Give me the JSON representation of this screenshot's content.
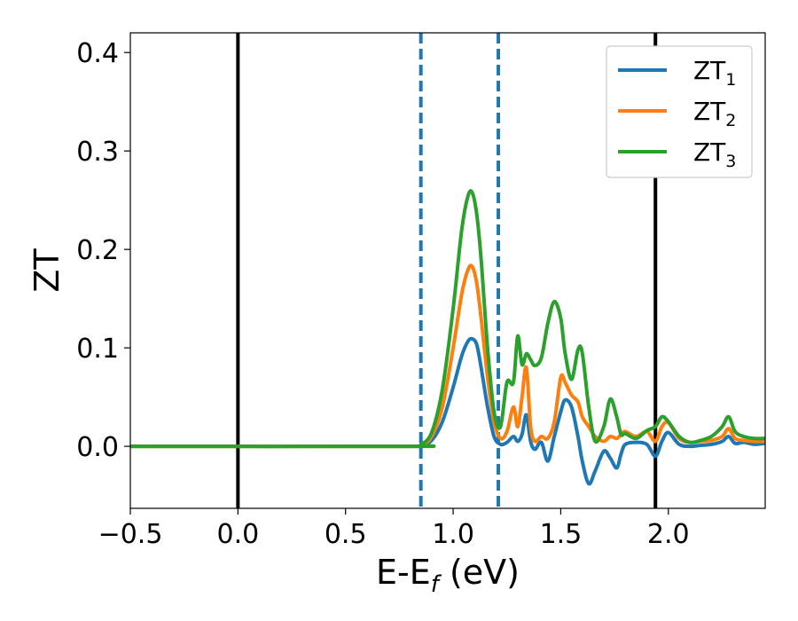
{
  "chart_data": {
    "type": "line",
    "title": "",
    "xlabel": {
      "main": "E-E",
      "sub": "f",
      "unit": " (eV)"
    },
    "ylabel": "ZT",
    "xlim": [
      -0.5,
      2.45
    ],
    "ylim": [
      -0.063,
      0.42
    ],
    "xticks": [
      -0.5,
      0.0,
      0.5,
      1.0,
      1.5,
      2.0
    ],
    "xtick_labels": [
      "−0.5",
      "0.0",
      "0.5",
      "1.0",
      "1.5",
      "2.0"
    ],
    "yticks": [
      0.0,
      0.1,
      0.2,
      0.3,
      0.4
    ],
    "ytick_labels": [
      "0.0",
      "0.1",
      "0.2",
      "0.3",
      "0.4"
    ],
    "grid": false,
    "legend_position": "top-right",
    "vlines_solid": [
      0.0,
      1.94
    ],
    "vlines_dashed": [
      0.85,
      1.21
    ],
    "series": [
      {
        "name": "ZT",
        "name_sub": "1",
        "color": "#1f77b4",
        "x": [
          -0.5,
          0.8,
          0.85,
          0.9,
          0.95,
          1.0,
          1.04,
          1.07,
          1.09,
          1.11,
          1.13,
          1.16,
          1.19,
          1.22,
          1.25,
          1.28,
          1.3,
          1.32,
          1.34,
          1.36,
          1.38,
          1.41,
          1.44,
          1.47,
          1.5,
          1.52,
          1.55,
          1.58,
          1.6,
          1.63,
          1.66,
          1.7,
          1.73,
          1.76,
          1.78,
          1.8,
          1.85,
          1.9,
          1.94,
          1.97,
          2.0,
          2.05,
          2.1,
          2.15,
          2.2,
          2.25,
          2.28,
          2.31,
          2.35,
          2.4,
          2.45
        ],
        "y": [
          0.0,
          0.0,
          0.001,
          0.006,
          0.025,
          0.06,
          0.092,
          0.107,
          0.109,
          0.103,
          0.08,
          0.04,
          0.01,
          0.002,
          0.004,
          0.01,
          0.005,
          0.012,
          0.032,
          0.005,
          -0.003,
          0.004,
          -0.015,
          0.01,
          0.035,
          0.047,
          0.04,
          0.01,
          -0.015,
          -0.038,
          -0.025,
          -0.005,
          -0.012,
          -0.022,
          -0.008,
          0.002,
          0.004,
          0.002,
          -0.01,
          0.005,
          0.014,
          0.002,
          0.0,
          0.001,
          0.002,
          0.005,
          0.01,
          0.003,
          0.004,
          0.002,
          0.003
        ]
      },
      {
        "name": "ZT",
        "name_sub": "2",
        "color": "#ff7f0e",
        "x": [
          -0.5,
          0.8,
          0.85,
          0.9,
          0.95,
          1.0,
          1.04,
          1.07,
          1.09,
          1.11,
          1.13,
          1.16,
          1.19,
          1.22,
          1.25,
          1.28,
          1.3,
          1.32,
          1.34,
          1.36,
          1.38,
          1.41,
          1.44,
          1.47,
          1.5,
          1.52,
          1.55,
          1.58,
          1.6,
          1.63,
          1.66,
          1.7,
          1.73,
          1.76,
          1.78,
          1.8,
          1.85,
          1.9,
          1.94,
          1.97,
          2.0,
          2.05,
          2.1,
          2.15,
          2.2,
          2.25,
          2.28,
          2.31,
          2.35,
          2.4,
          2.45
        ],
        "y": [
          0.0,
          0.0,
          0.001,
          0.01,
          0.04,
          0.1,
          0.155,
          0.18,
          0.182,
          0.165,
          0.13,
          0.07,
          0.025,
          0.008,
          0.015,
          0.04,
          0.02,
          0.05,
          0.08,
          0.02,
          0.005,
          0.01,
          0.008,
          0.025,
          0.07,
          0.065,
          0.052,
          0.045,
          0.03,
          0.02,
          0.01,
          0.005,
          0.01,
          0.008,
          0.012,
          0.015,
          0.01,
          0.015,
          0.005,
          0.02,
          0.024,
          0.008,
          0.004,
          0.005,
          0.006,
          0.01,
          0.018,
          0.008,
          0.006,
          0.005,
          0.005
        ]
      },
      {
        "name": "ZT",
        "name_sub": "3",
        "color": "#2ca02c",
        "x": [
          -0.5,
          0.8,
          0.85,
          0.9,
          0.95,
          1.0,
          1.04,
          1.07,
          1.09,
          1.11,
          1.13,
          1.16,
          1.19,
          1.22,
          1.25,
          1.28,
          1.3,
          1.32,
          1.34,
          1.36,
          1.38,
          1.41,
          1.44,
          1.47,
          1.5,
          1.52,
          1.55,
          1.58,
          1.6,
          1.63,
          1.66,
          1.7,
          1.73,
          1.76,
          1.78,
          1.8,
          1.85,
          1.9,
          1.94,
          1.97,
          2.0,
          2.05,
          2.1,
          2.15,
          2.2,
          2.25,
          2.28,
          2.31,
          2.35,
          2.4,
          2.45
        ],
        "y": [
          0.0,
          0.0,
          0.002,
          0.014,
          0.058,
          0.14,
          0.22,
          0.255,
          0.257,
          0.235,
          0.19,
          0.1,
          0.035,
          0.02,
          0.065,
          0.065,
          0.112,
          0.083,
          0.094,
          0.088,
          0.082,
          0.09,
          0.125,
          0.147,
          0.13,
          0.095,
          0.068,
          0.098,
          0.095,
          0.04,
          0.005,
          0.02,
          0.048,
          0.03,
          0.012,
          0.013,
          0.008,
          0.016,
          0.02,
          0.03,
          0.025,
          0.01,
          0.004,
          0.006,
          0.01,
          0.02,
          0.03,
          0.015,
          0.01,
          0.008,
          0.008
        ]
      }
    ]
  }
}
